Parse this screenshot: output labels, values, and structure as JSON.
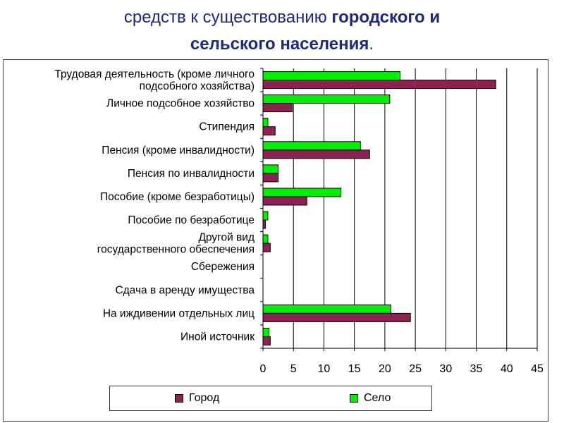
{
  "title": {
    "line1_plain": "средств к существованию ",
    "line1_bold": "городского и",
    "line2_bold": "сельского населения",
    "line2_plain": "."
  },
  "chart_data": {
    "type": "bar",
    "orientation": "horizontal",
    "categories": [
      "Трудовая деятельность (кроме личного\nподсобного хозяйства)",
      "Личное подсобное хозяйство",
      "Стипендия",
      "Пенсия (кроме инвалидности)",
      "Пенсия по инвалидности",
      "Пособие (кроме безработицы)",
      "Пособие по безработице",
      "Другой вид\nгосударственного обеспечения",
      "Сбережения",
      "Сдача в аренду имущества",
      "На иждивении отдельных лиц",
      "Иной источник"
    ],
    "series": [
      {
        "name": "Село",
        "color": "#00ee00",
        "values": [
          22.5,
          20.8,
          0.8,
          16.0,
          2.5,
          12.8,
          0.8,
          0.8,
          0,
          0,
          21.0,
          1.0
        ]
      },
      {
        "name": "Город",
        "color": "#8b2352",
        "values": [
          38.2,
          4.8,
          2.0,
          17.5,
          2.5,
          7.2,
          0.4,
          1.2,
          0,
          0,
          24.2,
          1.2
        ]
      }
    ],
    "xlim": [
      0,
      45
    ],
    "xticks": [
      0,
      5,
      10,
      15,
      20,
      25,
      30,
      35,
      40,
      45
    ],
    "grid": true,
    "legend_position": "bottom",
    "legend_order": [
      "Город",
      "Село"
    ]
  }
}
